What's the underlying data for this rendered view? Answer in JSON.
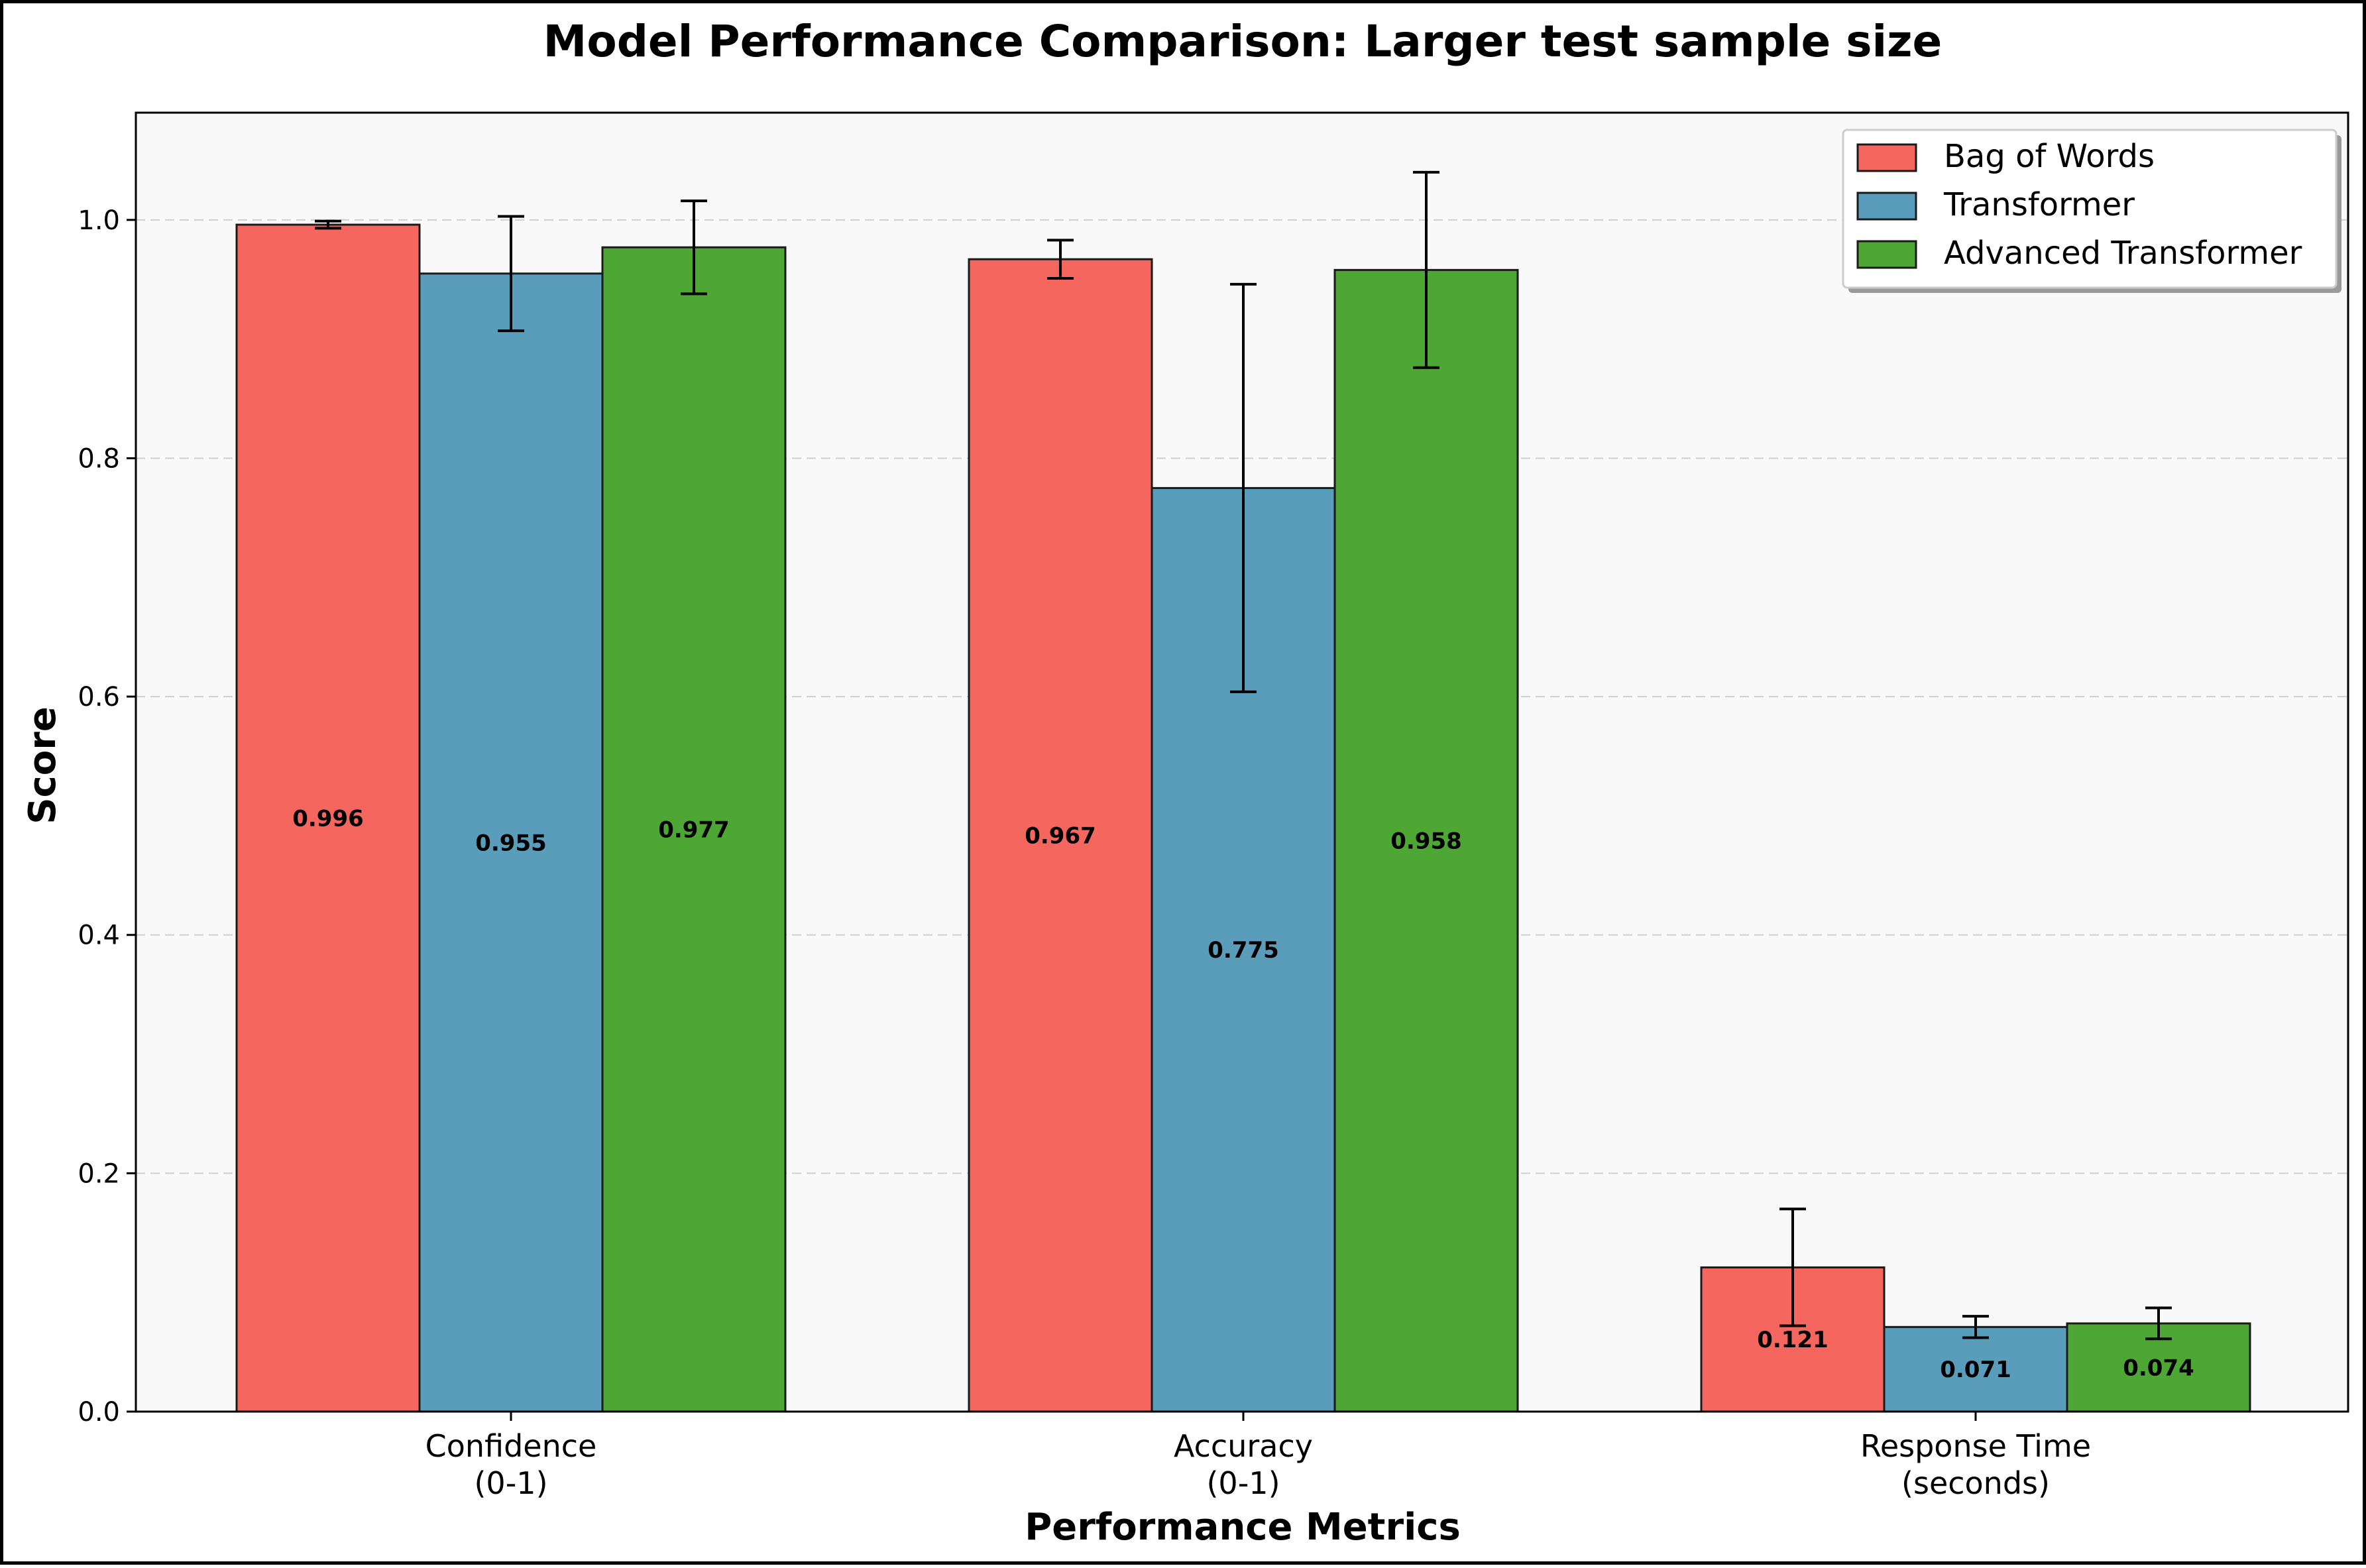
{
  "chart_data": {
    "type": "bar",
    "title": "Model Performance Comparison: Larger test sample size",
    "xlabel": "Performance Metrics",
    "ylabel": "Score",
    "categories": [
      [
        "Confidence",
        "(0-1)"
      ],
      [
        "Accuracy",
        "(0-1)"
      ],
      [
        "Response Time",
        "(seconds)"
      ]
    ],
    "ylim": [
      0,
      1.09
    ],
    "yticks": [
      0.0,
      0.2,
      0.4,
      0.6,
      0.8,
      1.0
    ],
    "ytick_labels": [
      "0.0",
      "0.2",
      "0.4",
      "0.6",
      "0.8",
      "1.0"
    ],
    "grid": true,
    "legend_position": "top-right",
    "series": [
      {
        "name": "Bag of Words",
        "color": "#f4665e",
        "values": [
          0.996,
          0.967,
          0.121
        ],
        "errors": [
          0.003,
          0.016,
          0.049
        ],
        "labels": [
          "0.996",
          "0.967",
          "0.121"
        ]
      },
      {
        "name": "Transformer",
        "color": "#5a9dbb",
        "values": [
          0.955,
          0.775,
          0.071
        ],
        "errors": [
          0.048,
          0.171,
          0.009
        ],
        "labels": [
          "0.955",
          "0.775",
          "0.071"
        ]
      },
      {
        "name": "Advanced Transformer",
        "color": "#4ea635",
        "values": [
          0.977,
          0.958,
          0.074
        ],
        "errors": [
          0.039,
          0.082,
          0.013
        ],
        "labels": [
          "0.977",
          "0.958",
          "0.074"
        ]
      }
    ]
  }
}
